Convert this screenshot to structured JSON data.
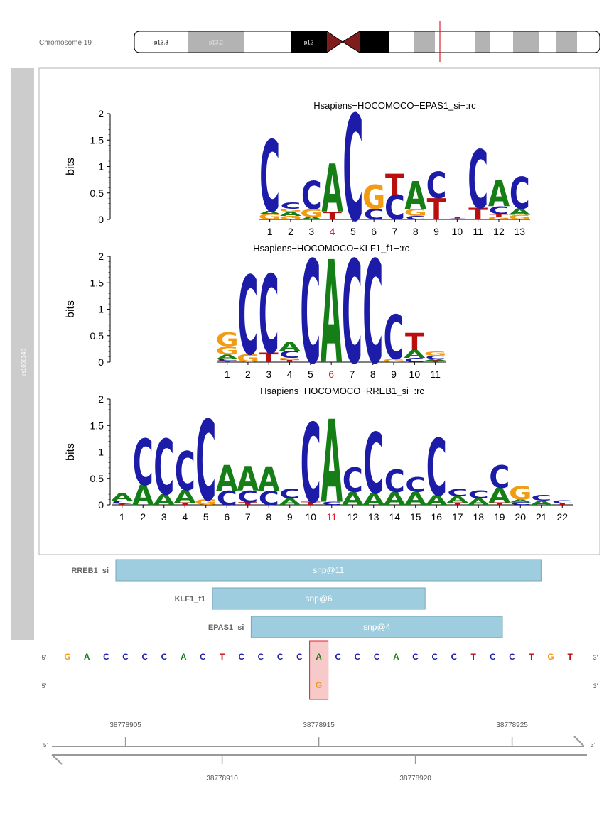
{
  "ideogram": {
    "chromosome_label": "Chromosome 19",
    "bands": [
      {
        "name": "p13.3",
        "color": "#ffffff",
        "text_color": "#000000"
      },
      {
        "name": "p13.2",
        "color": "#b3b3b3",
        "text_color": "#e6e6e6"
      },
      {
        "name": "",
        "color": "#ffffff",
        "text_color": "#000000"
      },
      {
        "name": "p12",
        "color": "#000000",
        "text_color": "#ffffff"
      },
      {
        "name": "",
        "color": "#7f1d1d",
        "text_color": "#ffffff"
      },
      {
        "name": "",
        "color": "#7f1d1d",
        "text_color": "#ffffff"
      },
      {
        "name": "",
        "color": "#000000",
        "text_color": "#ffffff"
      },
      {
        "name": "",
        "color": "#ffffff",
        "text_color": "#000000"
      },
      {
        "name": "",
        "color": "#b3b3b3",
        "text_color": "#000000"
      },
      {
        "name": "",
        "color": "#ffffff",
        "text_color": "#000000"
      },
      {
        "name": "",
        "color": "#b3b3b3",
        "text_color": "#000000"
      },
      {
        "name": "",
        "color": "#ffffff",
        "text_color": "#000000"
      },
      {
        "name": "",
        "color": "#b3b3b3",
        "text_color": "#000000"
      },
      {
        "name": "",
        "color": "#ffffff",
        "text_color": "#000000"
      },
      {
        "name": "",
        "color": "#b3b3b3",
        "text_color": "#000000"
      },
      {
        "name": "",
        "color": "#ffffff",
        "text_color": "#000000"
      },
      {
        "name": "",
        "color": "#b3b3b3",
        "text_color": "#000000"
      }
    ],
    "marker_color": "#e0202b"
  },
  "track_label": "rs1006140",
  "colors": {
    "A": "#167e16",
    "C": "#1c1ca8",
    "G": "#f29b14",
    "T": "#bb0f0f",
    "snp_highlight": "#e0202b",
    "box_fill": "#9fcde0",
    "box_stroke": "#7aa7b8"
  },
  "logos": [
    {
      "title": "Hsapiens−HOCOMOCO−EPAS1_si−:rc",
      "ylabel": "bits",
      "yticks": [
        "0",
        "0.5",
        "1",
        "1.5",
        "2"
      ],
      "ylim": [
        0,
        2
      ],
      "positions": [
        "1",
        "2",
        "3",
        "4",
        "5",
        "6",
        "7",
        "8",
        "9",
        "10",
        "11",
        "12",
        "13"
      ],
      "snp_position": 4,
      "columns": [
        [
          [
            "G",
            0.1
          ],
          [
            "A",
            0.06
          ],
          [
            "C",
            1.35
          ]
        ],
        [
          [
            "G",
            0.07
          ],
          [
            "A",
            0.08
          ],
          [
            "G",
            0.05
          ],
          [
            "C",
            0.12
          ]
        ],
        [
          [
            "A",
            0.05
          ],
          [
            "G",
            0.15
          ],
          [
            "C",
            0.53
          ]
        ],
        [
          [
            "T",
            0.15
          ],
          [
            "A",
            0.91
          ]
        ],
        [
          [
            "C",
            2.0
          ]
        ],
        [
          [
            "C",
            0.2
          ],
          [
            "G",
            0.45
          ]
        ],
        [
          [
            "C",
            0.46
          ],
          [
            "T",
            0.4
          ]
        ],
        [
          [
            "C",
            0.07
          ],
          [
            "G",
            0.13
          ],
          [
            "A",
            0.52
          ]
        ],
        [
          [
            "T",
            0.4
          ],
          [
            "C",
            0.5
          ]
        ],
        [
          [
            "C",
            0.02
          ],
          [
            "T",
            0.03
          ]
        ],
        [
          [
            "T",
            0.22
          ],
          [
            "C",
            1.1
          ]
        ],
        [
          [
            "G",
            0.04
          ],
          [
            "T",
            0.06
          ],
          [
            "C",
            0.15
          ],
          [
            "A",
            0.5
          ]
        ],
        [
          [
            "G",
            0.09
          ],
          [
            "A",
            0.12
          ],
          [
            "C",
            0.6
          ]
        ]
      ]
    },
    {
      "title": "Hsapiens−HOCOMOCO−KLF1_f1−:rc",
      "ylabel": "bits",
      "yticks": [
        "0",
        "0.5",
        "1",
        "1.5",
        "2"
      ],
      "ylim": [
        0,
        2
      ],
      "positions": [
        "1",
        "2",
        "3",
        "4",
        "5",
        "6",
        "7",
        "8",
        "9",
        "10",
        "11"
      ],
      "snp_position": 6,
      "columns": [
        [
          [
            "T",
            0.03
          ],
          [
            "C",
            0.03
          ],
          [
            "A",
            0.08
          ],
          [
            "G",
            0.16
          ],
          [
            "G",
            0.26
          ]
        ],
        [
          [
            "G",
            0.16
          ],
          [
            "C",
            1.49
          ]
        ],
        [
          [
            "T",
            0.18
          ],
          [
            "C",
            1.49
          ]
        ],
        [
          [
            "T",
            0.04
          ],
          [
            "G",
            0.04
          ],
          [
            "C",
            0.13
          ],
          [
            "A",
            0.17
          ]
        ],
        [
          [
            "C",
            1.95
          ]
        ],
        [
          [
            "A",
            1.95
          ]
        ],
        [
          [
            "C",
            1.95
          ]
        ],
        [
          [
            "C",
            1.95
          ]
        ],
        [
          [
            "G",
            0.06
          ],
          [
            "C",
            0.84
          ]
        ],
        [
          [
            "C",
            0.08
          ],
          [
            "A",
            0.15
          ],
          [
            "T",
            0.32
          ]
        ],
        [
          [
            "T",
            0.03
          ],
          [
            "A",
            0.03
          ],
          [
            "C",
            0.06
          ],
          [
            "G",
            0.08
          ]
        ]
      ]
    },
    {
      "title": "Hsapiens−HOCOMOCO−RREB1_si−:rc",
      "ylabel": "bits",
      "yticks": [
        "0",
        "0.5",
        "1",
        "1.5",
        "2"
      ],
      "ylim": [
        0,
        2
      ],
      "positions": [
        "1",
        "2",
        "3",
        "4",
        "5",
        "6",
        "7",
        "8",
        "9",
        "10",
        "11",
        "12",
        "13",
        "14",
        "15",
        "16",
        "17",
        "18",
        "19",
        "20",
        "21",
        "22"
      ],
      "snp_position": 11,
      "columns": [
        [
          [
            "T",
            0.02
          ],
          [
            "C",
            0.06
          ],
          [
            "A",
            0.14
          ]
        ],
        [
          [
            "A",
            0.38
          ],
          [
            "C",
            0.87
          ]
        ],
        [
          [
            "A",
            0.2
          ],
          [
            "C",
            1.05
          ]
        ],
        [
          [
            "T",
            0.04
          ],
          [
            "A",
            0.24
          ],
          [
            "C",
            0.73
          ]
        ],
        [
          [
            "G",
            0.1
          ],
          [
            "C",
            1.52
          ]
        ],
        [
          [
            "C",
            0.27
          ],
          [
            "A",
            0.49
          ]
        ],
        [
          [
            "T",
            0.05
          ],
          [
            "C",
            0.22
          ],
          [
            "A",
            0.46
          ]
        ],
        [
          [
            "C",
            0.26
          ],
          [
            "A",
            0.46
          ]
        ],
        [
          [
            "A",
            0.12
          ],
          [
            "C",
            0.18
          ]
        ],
        [
          [
            "T",
            0.06
          ],
          [
            "C",
            1.5
          ]
        ],
        [
          [
            "C",
            0.06
          ],
          [
            "A",
            1.57
          ]
        ],
        [
          [
            "A",
            0.24
          ],
          [
            "C",
            0.46
          ]
        ],
        [
          [
            "A",
            0.22
          ],
          [
            "C",
            1.15
          ]
        ],
        [
          [
            "A",
            0.24
          ],
          [
            "C",
            0.43
          ]
        ],
        [
          [
            "A",
            0.24
          ],
          [
            "C",
            0.28
          ]
        ],
        [
          [
            "A",
            0.18
          ],
          [
            "C",
            1.08
          ]
        ],
        [
          [
            "T",
            0.04
          ],
          [
            "A",
            0.12
          ],
          [
            "C",
            0.14
          ]
        ],
        [
          [
            "A",
            0.12
          ],
          [
            "C",
            0.16
          ]
        ],
        [
          [
            "T",
            0.04
          ],
          [
            "A",
            0.28
          ],
          [
            "C",
            0.43
          ]
        ],
        [
          [
            "C",
            0.05
          ],
          [
            "A",
            0.05
          ],
          [
            "G",
            0.25
          ]
        ],
        [
          [
            "A",
            0.08
          ],
          [
            "C",
            0.1
          ]
        ],
        [
          [
            "T",
            0.03
          ],
          [
            "C",
            0.06
          ]
        ]
      ]
    }
  ],
  "motif_tracks": [
    {
      "name": "RREB1_si",
      "label": "snp@11",
      "start_offset": -10,
      "end_offset": 11
    },
    {
      "name": "KLF1_f1",
      "label": "snp@6",
      "start_offset": -5,
      "end_offset": 5
    },
    {
      "name": "EPAS1_si",
      "label": "snp@4",
      "start_offset": -3,
      "end_offset": 9
    }
  ],
  "sequence": {
    "five_prime": "5'",
    "three_prime": "3'",
    "reference": [
      "G",
      "A",
      "C",
      "C",
      "C",
      "C",
      "A",
      "C",
      "T",
      "C",
      "C",
      "C",
      "C",
      "A",
      "C",
      "C",
      "C",
      "A",
      "C",
      "C",
      "C",
      "T",
      "C",
      "C",
      "T",
      "G",
      "T"
    ],
    "snp_index": 13,
    "alt_allele": "G"
  },
  "axis": {
    "five_prime": "5'",
    "three_prime": "3'",
    "upper_ticks": [
      "38778905",
      "38778915",
      "38778925"
    ],
    "lower_ticks": [
      "38778910",
      "38778920"
    ],
    "upper_tick_bases": [
      3,
      13,
      23
    ],
    "lower_tick_bases": [
      8,
      18
    ]
  }
}
